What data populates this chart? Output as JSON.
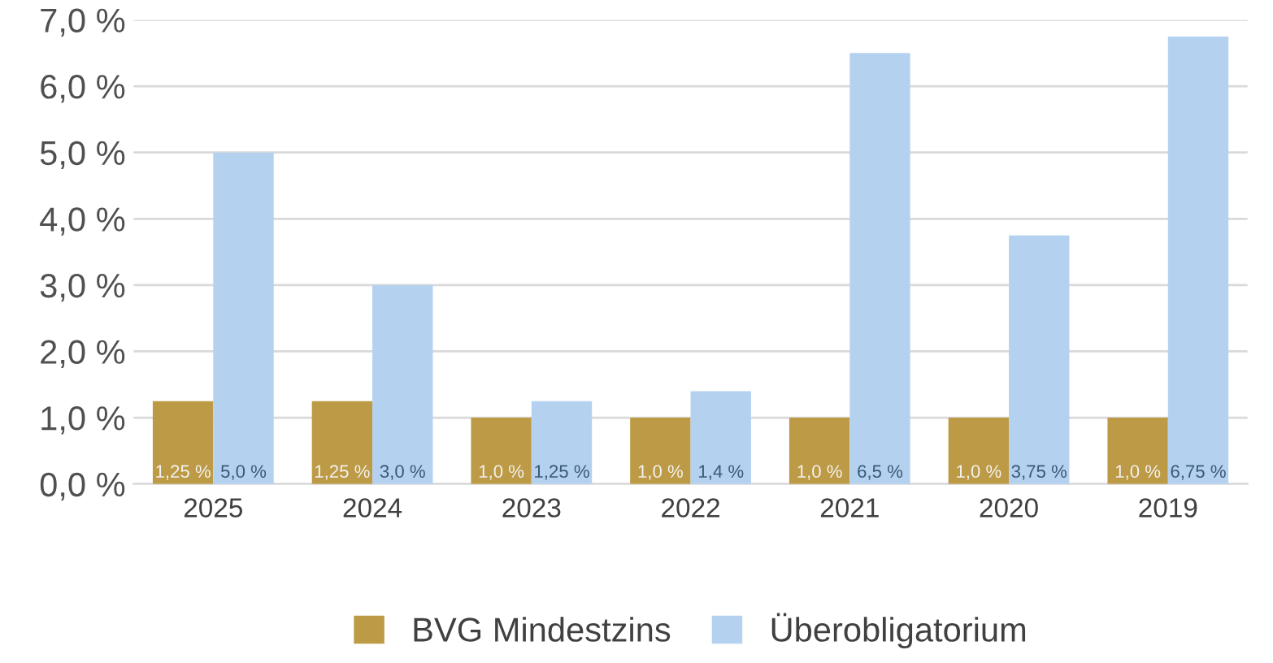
{
  "chart_data": {
    "type": "bar",
    "categories": [
      "2025",
      "2024",
      "2023",
      "2022",
      "2021",
      "2020",
      "2019"
    ],
    "series": [
      {
        "name": "BVG Mindestzins",
        "color": "#bd9a45",
        "values": [
          1.25,
          1.25,
          1.0,
          1.0,
          1.0,
          1.0,
          1.0
        ],
        "value_labels": [
          "1,25 %",
          "1,25 %",
          "1,0 %",
          "1,0 %",
          "1,0 %",
          "1,0 %",
          "1,0 %"
        ]
      },
      {
        "name": "Überobligatorium",
        "color": "#b4d2f0",
        "values": [
          5.0,
          3.0,
          1.25,
          1.4,
          6.5,
          3.75,
          6.75
        ],
        "value_labels": [
          "5,0 %",
          "3,0 %",
          "1,25 %",
          "1,4 %",
          "6,5 %",
          "3,75 %",
          "6,75 %"
        ]
      }
    ],
    "ylim": [
      0,
      7
    ],
    "yticks": [
      {
        "value": 0,
        "label": "0,0 %"
      },
      {
        "value": 1,
        "label": "1,0 %"
      },
      {
        "value": 2,
        "label": "2,0 %"
      },
      {
        "value": 3,
        "label": "3,0 %"
      },
      {
        "value": 4,
        "label": "4,0 %"
      },
      {
        "value": 5,
        "label": "5,0 %"
      },
      {
        "value": 6,
        "label": "6,0 %"
      },
      {
        "value": 7,
        "label": "7,0 %"
      }
    ],
    "grid": "y",
    "legend": "bottom"
  }
}
